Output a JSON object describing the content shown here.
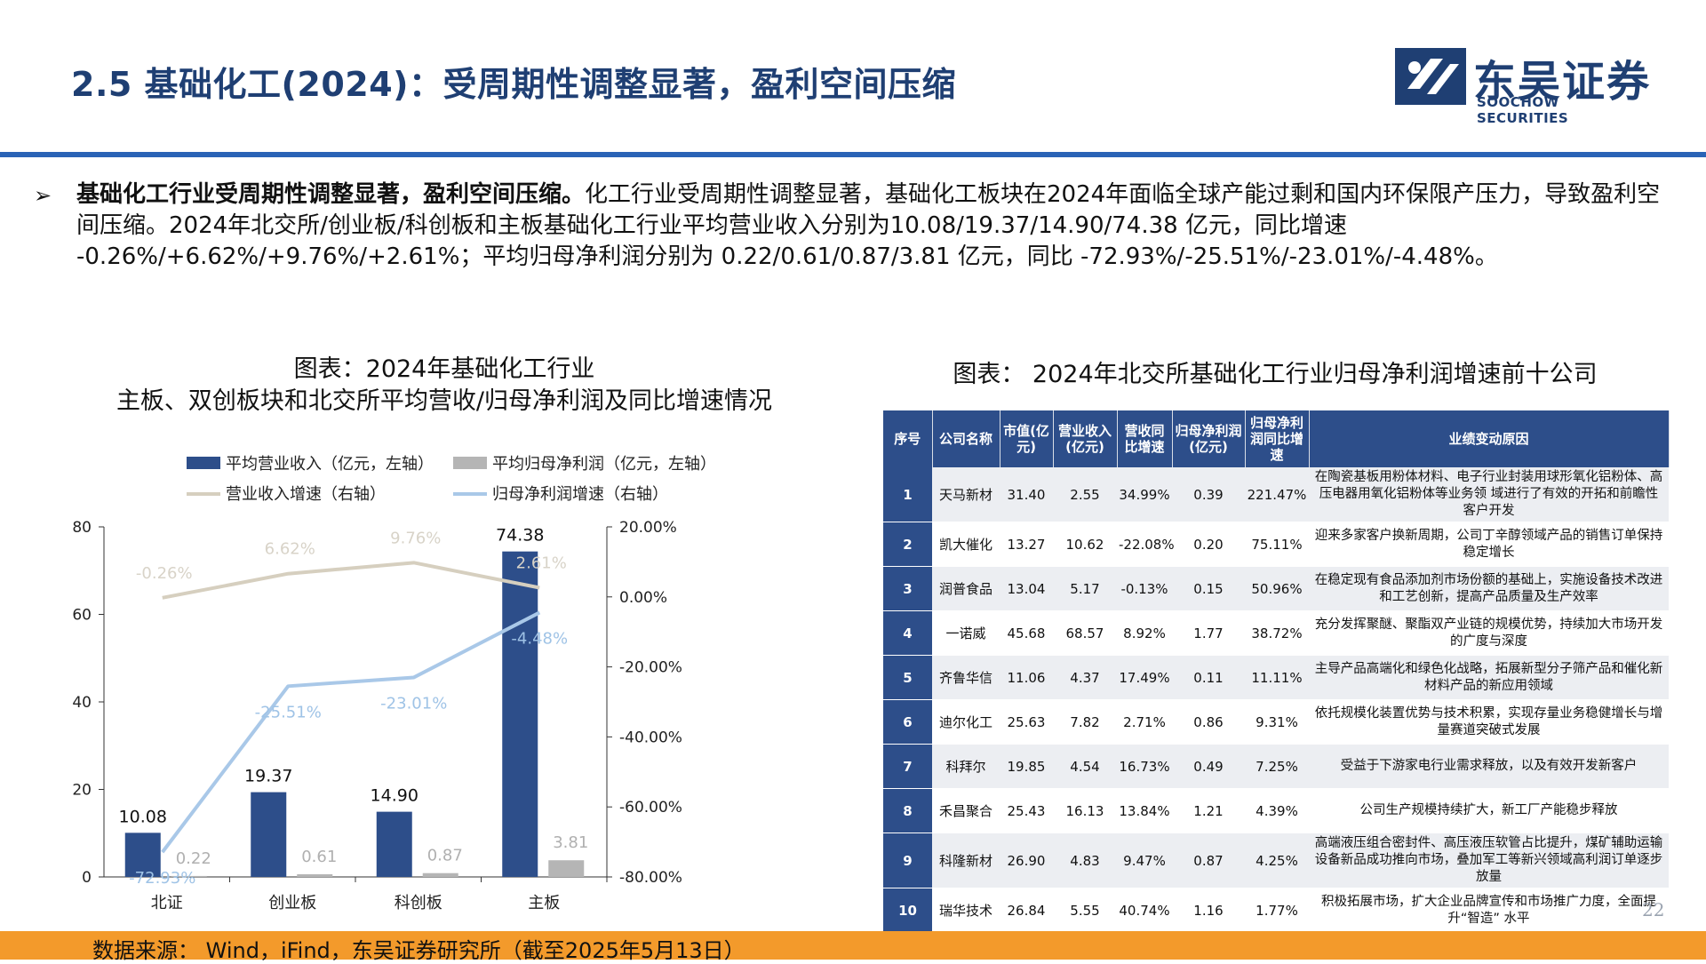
{
  "header": {
    "title": "2.5 基础化工(2024)：受周期性调整显著，盈利空间压缩",
    "logo_cn": "东吴证券",
    "logo_en": "SOOCHOW SECURITIES"
  },
  "summary": {
    "bullet": "➢",
    "bold": "基础化工行业受周期性调整显著，盈利空间压缩。",
    "text": "化工行业受周期性调整显著，基础化工板块在2024年面临全球产能过剩和国内环保限产压力，导致盈利空间压缩。2024年北交所/创业板/科创板和主板基础化工行业平均营业收入分别为10.08/19.37/14.90/74.38 亿元，同比增速 -0.26%/+6.62%/+9.76%/+2.61%；平均归母净利润分别为 0.22/0.61/0.87/3.81 亿元，同比 -72.93%/-25.51%/-23.01%/-4.48%。"
  },
  "left_chart_title": {
    "line1": "图表：2024年基础化工行业",
    "line2": "主板、双创板块和北交所平均营收/归母净利润及同比增速情况"
  },
  "right_table_title": "图表：  2024年北交所基础化工行业归母净利润增速前十公司",
  "chart_data": {
    "type": "bar",
    "categories": [
      "北证",
      "创业板",
      "科创板",
      "主板"
    ],
    "series": [
      {
        "name": "平均营业收入（亿元，左轴）",
        "type": "bar",
        "axis": "left",
        "values": [
          10.08,
          19.37,
          14.9,
          74.38
        ],
        "color": "#2d4e8a",
        "labels": [
          "10.08",
          "19.37",
          "14.90",
          "74.38"
        ]
      },
      {
        "name": "平均归母净利润（亿元，左轴）",
        "type": "bar",
        "axis": "left",
        "values": [
          0.22,
          0.61,
          0.87,
          3.81
        ],
        "color": "#b5b5b5",
        "labels": [
          "0.22",
          "0.61",
          "0.87",
          "3.81"
        ]
      },
      {
        "name": "营业收入增速（右轴）",
        "type": "line",
        "axis": "right",
        "values": [
          -0.26,
          6.62,
          9.76,
          2.61
        ],
        "color": "#d6cfbf",
        "labels": [
          "-0.26%",
          "6.62%",
          "9.76%",
          "2.61%"
        ]
      },
      {
        "name": "归母净利润增速（右轴）",
        "type": "line",
        "axis": "right",
        "values": [
          -72.93,
          -25.51,
          -23.01,
          -4.48
        ],
        "color": "#a9c8e8",
        "labels": [
          "-72.93%",
          "-25.51%",
          "-23.01%",
          "-4.48%"
        ]
      }
    ],
    "left_axis": {
      "ylim": [
        0,
        80
      ],
      "ticks": [
        "0",
        "20",
        "40",
        "60",
        "80"
      ]
    },
    "right_axis": {
      "ylim": [
        -80,
        20
      ],
      "ticks": [
        "-80.00%",
        "-60.00%",
        "-40.00%",
        "-20.00%",
        "0.00%",
        "20.00%"
      ]
    },
    "legend_position": "top",
    "grid": false
  },
  "table": {
    "headers": [
      "序号",
      "公司名称",
      "市值(亿元)",
      "营业收入(亿元)",
      "营收同比增速",
      "归母净利润(亿元)",
      "归母净利润同比增速",
      "业绩变动原因"
    ],
    "rows": [
      [
        "1",
        "天马新材",
        "31.40",
        "2.55",
        "34.99%",
        "0.39",
        "221.47%",
        "在陶瓷基板用粉体材料、电子行业封装用球形氧化铝粉体、高压电器用氧化铝粉体等业务领 域进行了有效的开拓和前瞻性客户开发"
      ],
      [
        "2",
        "凯大催化",
        "13.27",
        "10.62",
        "-22.08%",
        "0.20",
        "75.11%",
        "迎来多家客户换新周期，公司丁辛醇领域产品的销售订单保持稳定增长"
      ],
      [
        "3",
        "润普食品",
        "13.04",
        "5.17",
        "-0.13%",
        "0.15",
        "50.96%",
        "在稳定现有食品添加剂市场份额的基础上，实施设备技术改进和工艺创新，提高产品质量及生产效率"
      ],
      [
        "4",
        "一诺威",
        "45.68",
        "68.57",
        "8.92%",
        "1.77",
        "38.72%",
        "充分发挥聚醚、聚酯双产业链的规模优势，持续加大市场开发的广度与深度"
      ],
      [
        "5",
        "齐鲁华信",
        "11.06",
        "4.37",
        "17.49%",
        "0.11",
        "11.11%",
        "主导产品高端化和绿色化战略，拓展新型分子筛产品和催化新材料产品的新应用领域"
      ],
      [
        "6",
        "迪尔化工",
        "25.63",
        "7.82",
        "2.71%",
        "0.86",
        "9.31%",
        "依托规模化装置优势与技术积累，实现存量业务稳健增长与增量赛道突破式发展"
      ],
      [
        "7",
        "科拜尔",
        "19.85",
        "4.54",
        "16.73%",
        "0.49",
        "7.25%",
        "受益于下游家电行业需求释放，以及有效开发新客户"
      ],
      [
        "8",
        "禾昌聚合",
        "25.43",
        "16.13",
        "13.84%",
        "1.21",
        "4.39%",
        "公司生产规模持续扩大，新工厂产能稳步释放"
      ],
      [
        "9",
        "科隆新材",
        "26.90",
        "4.83",
        "9.47%",
        "0.87",
        "4.25%",
        "高端液压组合密封件、高压液压软管占比提升，煤矿辅助运输设备新品成功推向市场，叠加军工等新兴领域高利润订单逐步放量"
      ],
      [
        "10",
        "瑞华技术",
        "26.84",
        "5.55",
        "40.74%",
        "1.16",
        "1.77%",
        "积极拓展市场，扩大企业品牌宣传和市场推广力度，全面提升“智造” 水平"
      ]
    ]
  },
  "page_number": "22",
  "footer": "数据来源： Wind，iFind，东吴证券研究所（截至2025年5月13日）"
}
